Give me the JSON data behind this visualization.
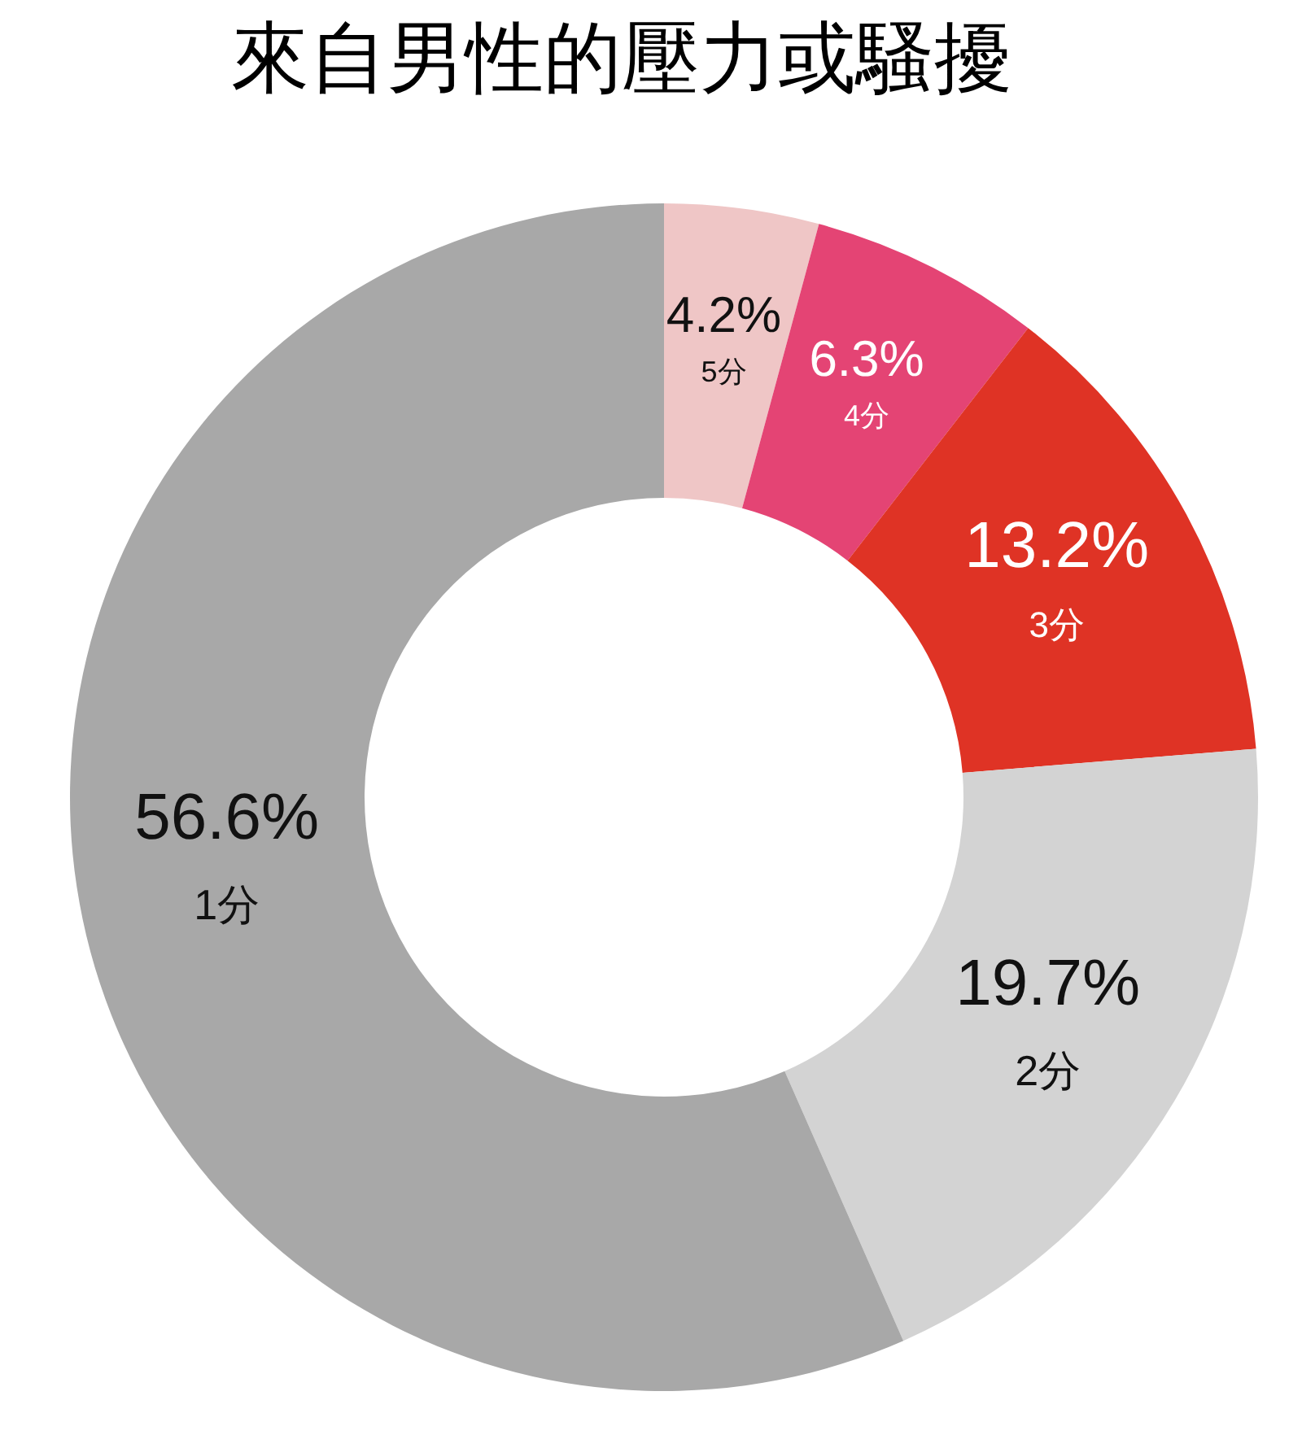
{
  "chart_data": {
    "type": "donut",
    "title": "來自男性的壓力或騷擾",
    "categories": [
      "5分",
      "4分",
      "3分",
      "2分",
      "1分"
    ],
    "values": [
      4.2,
      6.3,
      13.2,
      19.7,
      56.6
    ],
    "value_labels": [
      "4.2%",
      "6.3%",
      "13.2%",
      "19.7%",
      "56.6%"
    ],
    "colors": [
      "#efc6c6",
      "#e44474",
      "#df3325",
      "#d3d3d3",
      "#a8a8a8"
    ]
  }
}
